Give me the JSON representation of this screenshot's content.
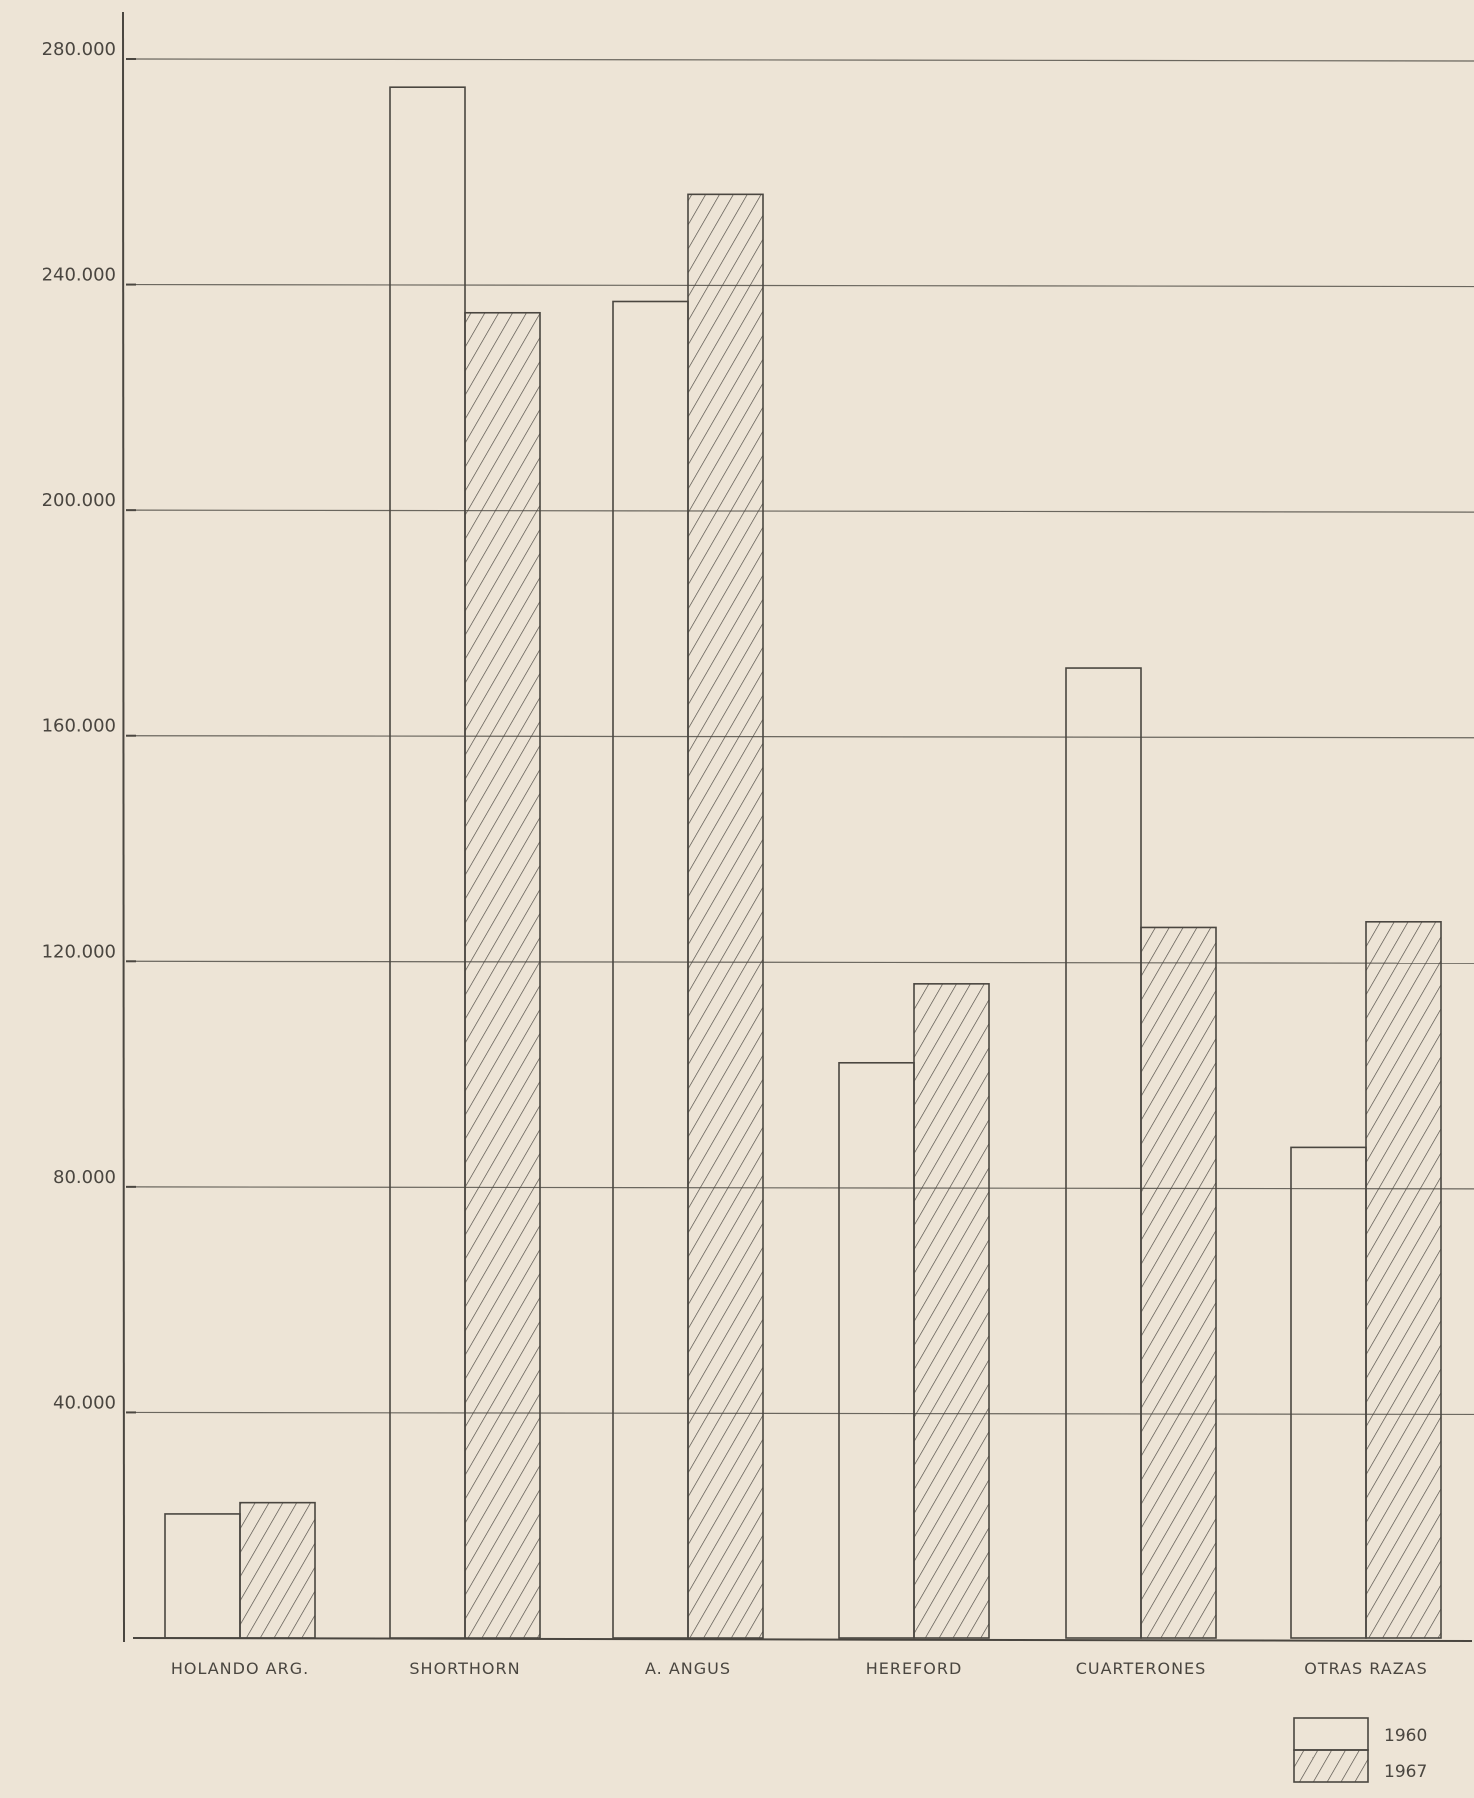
{
  "chart_data": {
    "type": "bar",
    "title": "",
    "xlabel": "",
    "ylabel": "",
    "categories": [
      "HOLANDO ARG.",
      "SHORTHORN",
      "A. ANGUS",
      "HEREFORD",
      "CUARTERONES",
      "OTRAS RAZAS"
    ],
    "series": [
      {
        "name": "1960",
        "pattern": "plain",
        "values": [
          22000,
          275000,
          237000,
          102000,
          172000,
          87000
        ]
      },
      {
        "name": "1967",
        "pattern": "hatched",
        "values": [
          24000,
          235000,
          256000,
          116000,
          126000,
          127000
        ]
      }
    ],
    "y_ticks": [
      {
        "value": 40000,
        "label": "40.000"
      },
      {
        "value": 80000,
        "label": "80.000"
      },
      {
        "value": 120000,
        "label": "120.000"
      },
      {
        "value": 160000,
        "label": "160.000"
      },
      {
        "value": 200000,
        "label": "200.000"
      },
      {
        "value": 240000,
        "label": "240.000"
      },
      {
        "value": 280000,
        "label": "280.000"
      }
    ],
    "ylim": [
      0,
      280000
    ],
    "grid": true,
    "legend_position": "bottom-right",
    "colors": {
      "paper": "#ede4d6",
      "ink": "#4a4640",
      "grid": "#6a665e"
    }
  }
}
